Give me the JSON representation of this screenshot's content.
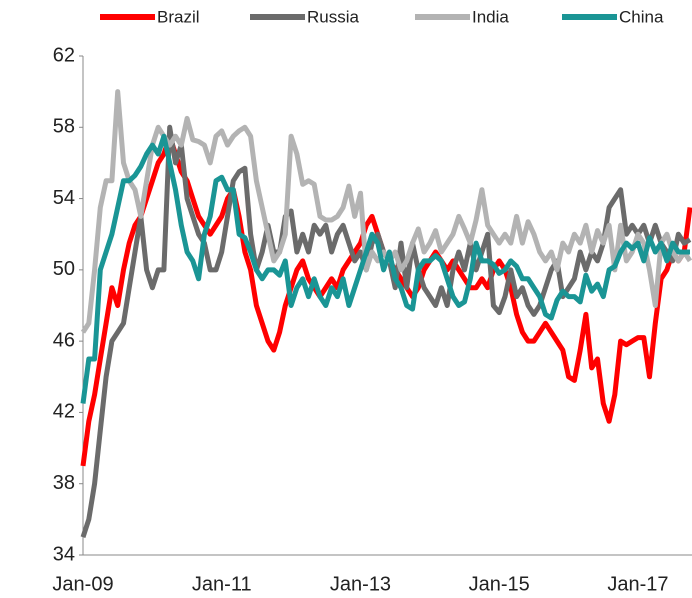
{
  "chart_data": {
    "type": "line",
    "categories": [
      "Jan-09",
      null,
      null,
      null,
      null,
      null,
      null,
      null,
      null,
      null,
      null,
      null,
      null,
      null,
      null,
      null,
      null,
      null,
      null,
      null,
      null,
      null,
      null,
      null,
      "Jan-11",
      null,
      null,
      null,
      null,
      null,
      null,
      null,
      null,
      null,
      null,
      null,
      null,
      null,
      null,
      null,
      null,
      null,
      null,
      null,
      null,
      null,
      null,
      null,
      "Jan-13",
      null,
      null,
      null,
      null,
      null,
      null,
      null,
      null,
      null,
      null,
      null,
      null,
      null,
      null,
      null,
      null,
      null,
      null,
      null,
      null,
      null,
      null,
      null,
      "Jan-15",
      null,
      null,
      null,
      null,
      null,
      null,
      null,
      null,
      null,
      null,
      null,
      null,
      null,
      null,
      null,
      null,
      null,
      null,
      null,
      null,
      null,
      null,
      null,
      "Jan-17",
      null,
      null,
      null,
      null,
      null,
      null,
      null,
      null,
      null
    ],
    "series": [
      {
        "name": "Brazil",
        "color": "#ff0000",
        "values": [
          39,
          41.5,
          43,
          45,
          47,
          49,
          48,
          50,
          51.5,
          52.5,
          53,
          54,
          55,
          56,
          56.5,
          57.5,
          56.5,
          55.5,
          55,
          54,
          53,
          52.5,
          52,
          52.5,
          53,
          54,
          54.5,
          53,
          51,
          50,
          48,
          47,
          46,
          45.5,
          46.5,
          48,
          49,
          50,
          50.5,
          49.5,
          49,
          48.5,
          49,
          49.5,
          49,
          50,
          50.5,
          51,
          51.5,
          52.5,
          53,
          52,
          51,
          50.5,
          50,
          49.5,
          49,
          48.5,
          49,
          50,
          50.5,
          51,
          50.5,
          50,
          50.5,
          50,
          49.5,
          49,
          49,
          49.5,
          49,
          50,
          50.5,
          50,
          49,
          47.5,
          46.5,
          46,
          46,
          46.5,
          47,
          46.5,
          46,
          45.5,
          44,
          43.8,
          45.5,
          47.5,
          44.5,
          45,
          42.5,
          41.5,
          43,
          46,
          45.8,
          46,
          46.2,
          46.2,
          44,
          47,
          49.5,
          50,
          51,
          50.5,
          51,
          53.5
        ]
      },
      {
        "name": "Russia",
        "color": "#6b6b6b",
        "values": [
          35,
          36,
          38,
          41,
          44,
          46,
          46.5,
          47,
          49,
          51,
          53,
          50,
          49,
          50,
          50,
          58,
          56,
          57,
          54,
          53,
          52,
          51.5,
          50,
          50,
          51,
          53,
          55,
          55.5,
          55.7,
          52,
          50,
          51,
          52.5,
          51,
          51,
          53,
          53.3,
          51,
          52,
          51,
          52.5,
          52,
          52.5,
          51,
          52,
          52.5,
          51.5,
          50.5,
          51,
          50,
          51.5,
          52,
          51,
          50.5,
          49,
          51.5,
          49,
          51.5,
          50,
          49,
          48.5,
          48,
          49,
          48,
          50,
          51,
          50,
          51.5,
          50,
          51,
          52,
          48,
          47.6,
          48.5,
          50,
          48.5,
          49,
          48,
          47.5,
          48,
          49,
          50,
          50.5,
          48.5,
          49,
          49.5,
          51,
          50,
          51,
          50.5,
          51.5,
          53.5,
          54,
          54.5,
          52,
          52.5,
          52,
          52.5,
          51.5,
          52.5,
          51.5,
          51,
          50.5,
          52,
          51.5,
          51.7
        ]
      },
      {
        "name": "India",
        "color": "#b3b3b3",
        "values": [
          46.5,
          47,
          50,
          53.5,
          55,
          55,
          60,
          56,
          55,
          54.5,
          53,
          55,
          57,
          58,
          57.5,
          57,
          57.5,
          57,
          58.5,
          57.3,
          57.2,
          57,
          56,
          57.5,
          57.8,
          57,
          57.5,
          57.8,
          58,
          57.5,
          55,
          53.5,
          52,
          50.5,
          51,
          52,
          57.5,
          56.5,
          54.8,
          55,
          54.8,
          53,
          52.8,
          52.8,
          53,
          53.5,
          54.7,
          53,
          54.3,
          50,
          51,
          50.5,
          51,
          50.5,
          51,
          50,
          50.5,
          51.5,
          52.3,
          51,
          51.5,
          52.2,
          51,
          51.5,
          52,
          53,
          52.3,
          51.5,
          52.8,
          54.5,
          52.5,
          52,
          51.5,
          52,
          51.5,
          53,
          51.5,
          52.7,
          52,
          51,
          50.5,
          51,
          50,
          51.5,
          51,
          52,
          51.5,
          52.5,
          51,
          52.2,
          51.5,
          52.5,
          50,
          52.5,
          50.5,
          51,
          52,
          51.5,
          50,
          48,
          51.5,
          52,
          51,
          50.5,
          51,
          50.5
        ]
      },
      {
        "name": "China",
        "color": "#1a9595",
        "values": [
          42.5,
          45,
          45,
          50,
          51,
          52,
          53.5,
          55,
          55,
          55.3,
          55.8,
          56.5,
          57,
          56.5,
          57.5,
          56,
          54.5,
          52.5,
          51,
          50.5,
          49.5,
          52,
          53,
          55,
          55.2,
          54.5,
          54.5,
          52,
          51.8,
          51,
          50,
          49.5,
          50,
          50,
          49.7,
          50.5,
          48,
          49,
          49.5,
          48.5,
          49.5,
          48.5,
          48,
          49,
          48.5,
          49.5,
          48,
          49,
          50,
          51,
          52,
          51.5,
          50,
          51,
          49.5,
          49,
          48,
          47.8,
          50,
          50.5,
          50.5,
          50.8,
          50.5,
          49.5,
          48.5,
          48,
          48.2,
          49.5,
          51.5,
          50.5,
          50.5,
          50.3,
          49.8,
          50,
          50.5,
          50.2,
          49.5,
          49.5,
          49,
          48.5,
          47.5,
          47.3,
          48.3,
          48.8,
          48.5,
          48.5,
          48.2,
          49.7,
          48.8,
          49.2,
          48.5,
          50,
          50.2,
          51,
          51.5,
          51.2,
          51.5,
          50.5,
          51.8,
          51,
          51.5,
          50.5,
          51.5,
          51,
          51,
          51
        ]
      }
    ],
    "ylim": [
      34,
      62
    ],
    "yticks": [
      34,
      38,
      42,
      46,
      50,
      54,
      58,
      62
    ],
    "grid": false,
    "legend": "top"
  }
}
